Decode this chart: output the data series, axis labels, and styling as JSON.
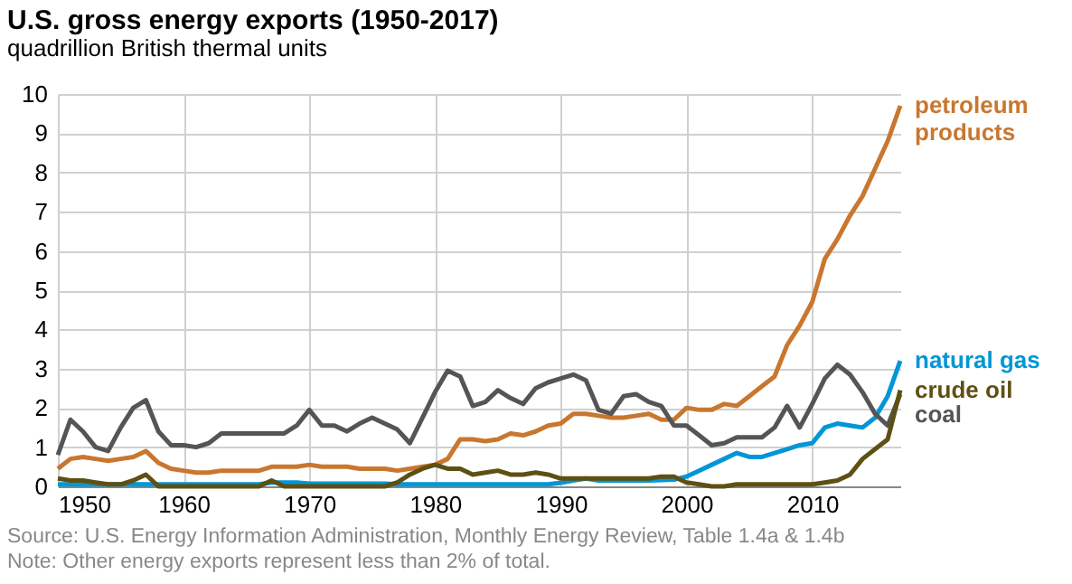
{
  "chart_data": {
    "type": "line",
    "title": "U.S. gross energy exports (1950-2017)",
    "subtitle": "quadrillion British thermal units",
    "x": [
      1950,
      1951,
      1952,
      1953,
      1954,
      1955,
      1956,
      1957,
      1958,
      1959,
      1960,
      1961,
      1962,
      1963,
      1964,
      1965,
      1966,
      1967,
      1968,
      1969,
      1970,
      1971,
      1972,
      1973,
      1974,
      1975,
      1976,
      1977,
      1978,
      1979,
      1980,
      1981,
      1982,
      1983,
      1984,
      1985,
      1986,
      1987,
      1988,
      1989,
      1990,
      1991,
      1992,
      1993,
      1994,
      1995,
      1996,
      1997,
      1998,
      1999,
      2000,
      2001,
      2002,
      2003,
      2004,
      2005,
      2006,
      2007,
      2008,
      2009,
      2010,
      2011,
      2012,
      2013,
      2014,
      2015,
      2016,
      2017
    ],
    "series": [
      {
        "name": "petroleum products",
        "color": "#c9772f",
        "values": [
          0.45,
          0.7,
          0.75,
          0.7,
          0.65,
          0.7,
          0.75,
          0.9,
          0.6,
          0.45,
          0.4,
          0.35,
          0.35,
          0.4,
          0.4,
          0.4,
          0.4,
          0.5,
          0.5,
          0.5,
          0.55,
          0.5,
          0.5,
          0.5,
          0.45,
          0.45,
          0.45,
          0.4,
          0.45,
          0.5,
          0.55,
          0.7,
          1.2,
          1.2,
          1.15,
          1.2,
          1.35,
          1.3,
          1.4,
          1.55,
          1.6,
          1.85,
          1.85,
          1.8,
          1.75,
          1.75,
          1.8,
          1.85,
          1.7,
          1.7,
          2.0,
          1.95,
          1.95,
          2.1,
          2.05,
          2.3,
          2.55,
          2.8,
          3.6,
          4.1,
          4.7,
          5.8,
          6.3,
          6.9,
          7.4,
          8.1,
          8.8,
          9.7
        ]
      },
      {
        "name": "natural gas",
        "color": "#0096d7",
        "values": [
          0.05,
          0.05,
          0.05,
          0.05,
          0.05,
          0.05,
          0.05,
          0.05,
          0.05,
          0.05,
          0.05,
          0.05,
          0.05,
          0.05,
          0.05,
          0.05,
          0.05,
          0.1,
          0.1,
          0.1,
          0.07,
          0.07,
          0.07,
          0.07,
          0.07,
          0.07,
          0.07,
          0.05,
          0.05,
          0.05,
          0.05,
          0.05,
          0.05,
          0.05,
          0.05,
          0.05,
          0.05,
          0.05,
          0.05,
          0.05,
          0.09,
          0.15,
          0.2,
          0.15,
          0.15,
          0.15,
          0.15,
          0.15,
          0.16,
          0.17,
          0.25,
          0.4,
          0.55,
          0.7,
          0.85,
          0.75,
          0.75,
          0.85,
          0.95,
          1.05,
          1.1,
          1.5,
          1.6,
          1.55,
          1.5,
          1.75,
          2.3,
          3.2
        ]
      },
      {
        "name": "coal",
        "color": "#555555",
        "values": [
          0.8,
          1.7,
          1.4,
          1.0,
          0.9,
          1.5,
          2.0,
          2.2,
          1.4,
          1.05,
          1.05,
          1.0,
          1.1,
          1.35,
          1.35,
          1.35,
          1.35,
          1.35,
          1.35,
          1.55,
          1.95,
          1.55,
          1.55,
          1.4,
          1.6,
          1.75,
          1.6,
          1.45,
          1.1,
          1.75,
          2.4,
          2.95,
          2.8,
          2.05,
          2.15,
          2.45,
          2.25,
          2.1,
          2.5,
          2.65,
          2.75,
          2.85,
          2.7,
          1.95,
          1.85,
          2.3,
          2.35,
          2.15,
          2.05,
          1.55,
          1.55,
          1.3,
          1.05,
          1.1,
          1.25,
          1.25,
          1.25,
          1.5,
          2.05,
          1.5,
          2.1,
          2.75,
          3.1,
          2.85,
          2.4,
          1.85,
          1.55,
          2.35
        ]
      },
      {
        "name": "crude oil",
        "color": "#5e5013",
        "values": [
          0.2,
          0.15,
          0.15,
          0.1,
          0.05,
          0.05,
          0.15,
          0.3,
          0.0,
          0.0,
          0.0,
          0.0,
          0.0,
          0.0,
          0.0,
          0.0,
          0.0,
          0.15,
          0.0,
          0.0,
          0.0,
          0.0,
          0.0,
          0.0,
          0.0,
          0.0,
          0.0,
          0.1,
          0.3,
          0.45,
          0.55,
          0.45,
          0.45,
          0.3,
          0.35,
          0.4,
          0.3,
          0.3,
          0.35,
          0.3,
          0.2,
          0.2,
          0.2,
          0.2,
          0.2,
          0.2,
          0.2,
          0.2,
          0.25,
          0.25,
          0.1,
          0.05,
          0.0,
          0.0,
          0.05,
          0.05,
          0.05,
          0.05,
          0.05,
          0.05,
          0.05,
          0.1,
          0.15,
          0.3,
          0.7,
          0.95,
          1.2,
          2.45
        ]
      }
    ],
    "xlim": [
      1950,
      2017
    ],
    "xticks": [
      1950,
      1960,
      1970,
      1980,
      1990,
      2000,
      2010
    ],
    "ylim": [
      0,
      10
    ],
    "yticks": [
      0,
      1,
      2,
      3,
      4,
      5,
      6,
      7,
      8,
      9,
      10
    ],
    "grid": true,
    "legend": false,
    "annotations": [
      "Source: U.S. Energy Information Administration, Monthly Energy Review, Table 1.4a & 1.4b",
      "Note: Other energy exports represent less than 2% of total."
    ]
  }
}
